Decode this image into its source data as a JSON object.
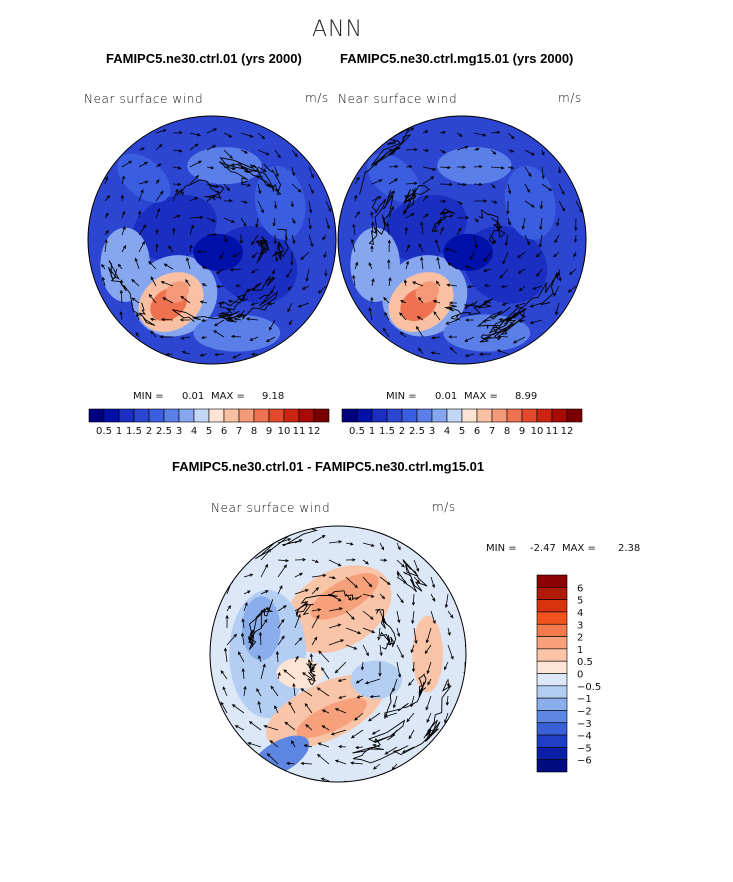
{
  "figure": {
    "title": "ANN"
  },
  "chart_data": [
    {
      "type": "heatmap",
      "projection": "polar-stereographic",
      "title": "FAMIPC5.ne30.ctrl.01 (yrs 2000)",
      "variable_label": "Near surface wind",
      "units": "m/s",
      "min_label": "MIN =",
      "min_value": "0.01",
      "max_label": "MAX =",
      "max_value": "9.18",
      "min": 0.01,
      "max": 9.18,
      "colorbar": {
        "orientation": "horizontal",
        "levels": [
          "0.5",
          "1",
          "1.5",
          "2",
          "2.5",
          "3",
          "4",
          "5",
          "6",
          "7",
          "8",
          "9",
          "10",
          "11",
          "12"
        ],
        "colors": [
          "#00007f",
          "#0010a8",
          "#1a2fc2",
          "#2c46d2",
          "#3b5ee0",
          "#5a7fe8",
          "#86a7f0",
          "#c3d7f6",
          "#fde4d4",
          "#f9c0a4",
          "#f59a78",
          "#ef7250",
          "#e34a2c",
          "#cb2512",
          "#a80b05",
          "#7a0000"
        ]
      },
      "overlay": "wind vectors",
      "coastlines": true
    },
    {
      "type": "heatmap",
      "projection": "polar-stereographic",
      "title": "FAMIPC5.ne30.ctrl.mg15.01 (yrs 2000)",
      "variable_label": "Near surface wind",
      "units": "m/s",
      "min_label": "MIN =",
      "min_value": "0.01",
      "max_label": "MAX =",
      "max_value": "8.99",
      "min": 0.01,
      "max": 8.99,
      "colorbar": {
        "orientation": "horizontal",
        "levels": [
          "0.5",
          "1",
          "1.5",
          "2",
          "2.5",
          "3",
          "4",
          "5",
          "6",
          "7",
          "8",
          "9",
          "10",
          "11",
          "12"
        ],
        "colors": [
          "#00007f",
          "#0010a8",
          "#1a2fc2",
          "#2c46d2",
          "#3b5ee0",
          "#5a7fe8",
          "#86a7f0",
          "#c3d7f6",
          "#fde4d4",
          "#f9c0a4",
          "#f59a78",
          "#ef7250",
          "#e34a2c",
          "#cb2512",
          "#a80b05",
          "#7a0000"
        ]
      },
      "overlay": "wind vectors",
      "coastlines": true
    },
    {
      "type": "heatmap",
      "projection": "polar-stereographic",
      "title": "FAMIPC5.ne30.ctrl.01 - FAMIPC5.ne30.ctrl.mg15.01",
      "variable_label": "Near surface wind",
      "units": "m/s",
      "min_label": "MIN =",
      "min_value": "-2.47",
      "max_label": "MAX =",
      "max_value": "2.38",
      "min": -2.47,
      "max": 2.38,
      "colorbar": {
        "orientation": "vertical",
        "levels": [
          "6",
          "5",
          "4",
          "3",
          "2",
          "1",
          "0.5",
          "0",
          "−0.5",
          "−1",
          "−2",
          "−3",
          "−4",
          "−5",
          "−6"
        ],
        "colors": [
          "#8b0000",
          "#b01a06",
          "#d8320e",
          "#f2531c",
          "#f47a4e",
          "#f6a07c",
          "#f9c4a8",
          "#fde4d4",
          "#dce8f8",
          "#b4cdf2",
          "#8aaeec",
          "#5d86e2",
          "#3a5fd6",
          "#1f3ec6",
          "#0b1fa8",
          "#000b80"
        ]
      },
      "overlay": "wind vectors",
      "coastlines": true
    }
  ]
}
